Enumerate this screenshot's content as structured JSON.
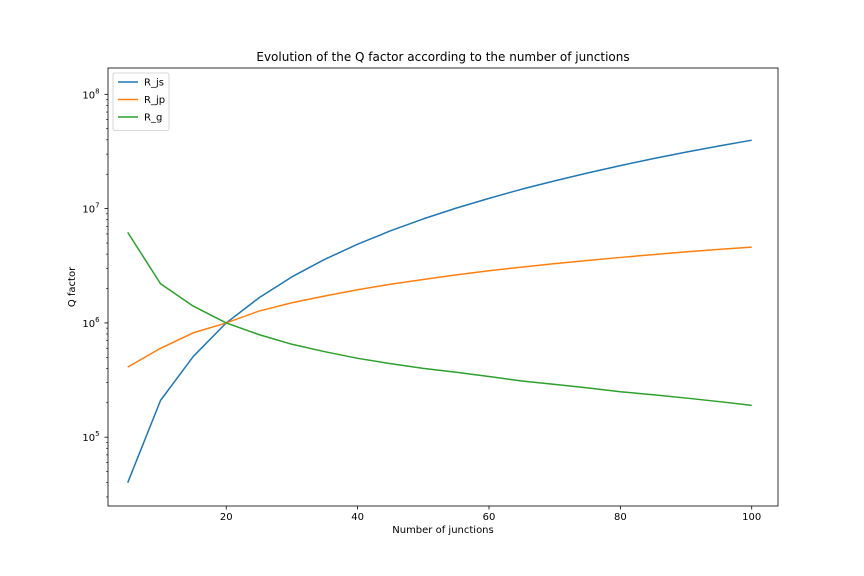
{
  "chart_data": {
    "type": "line",
    "title": "Evolution of the Q factor according to the number of junctions",
    "xlabel": "Number of junctions",
    "ylabel": "Q factor",
    "xlim": [
      2,
      104
    ],
    "ylim": [
      25000,
      170000000
    ],
    "yscale": "log",
    "grid": false,
    "legend_position": "top-left",
    "x_ticks": [
      20,
      40,
      60,
      80,
      100
    ],
    "x_tick_labels": [
      "20",
      "40",
      "60",
      "80",
      "100"
    ],
    "y_ticks": [
      100000,
      1000000,
      10000000,
      100000000
    ],
    "y_tick_labels": [
      {
        "base": "10",
        "exp": "5"
      },
      {
        "base": "10",
        "exp": "6"
      },
      {
        "base": "10",
        "exp": "7"
      },
      {
        "base": "10",
        "exp": "8"
      }
    ],
    "x": [
      5,
      10,
      15,
      20,
      25,
      30,
      35,
      40,
      45,
      50,
      55,
      60,
      65,
      70,
      75,
      80,
      85,
      90,
      95,
      100
    ],
    "series": [
      {
        "name": "R_js",
        "color": "#1f77b4",
        "values": [
          40000,
          210000,
          510000,
          1000000,
          1660000,
          2530000,
          3600000,
          4880000,
          6390000,
          8130000,
          10100000,
          12300000,
          14800000,
          17500000,
          20500000,
          23800000,
          27400000,
          31200000,
          35300000,
          39700000
        ]
      },
      {
        "name": "R_jp",
        "color": "#ff7f0e",
        "values": [
          410000,
          600000,
          820000,
          1000000,
          1270000,
          1500000,
          1720000,
          1950000,
          2180000,
          2400000,
          2630000,
          2860000,
          3080000,
          3300000,
          3520000,
          3740000,
          3960000,
          4180000,
          4400000,
          4600000
        ]
      },
      {
        "name": "R_g",
        "color": "#2ca02c",
        "values": [
          6200000,
          2200000,
          1400000,
          1000000,
          790000,
          650000,
          560000,
          490000,
          440000,
          400000,
          370000,
          340000,
          310000,
          290000,
          270000,
          250000,
          235000,
          220000,
          205000,
          190000
        ]
      }
    ]
  }
}
